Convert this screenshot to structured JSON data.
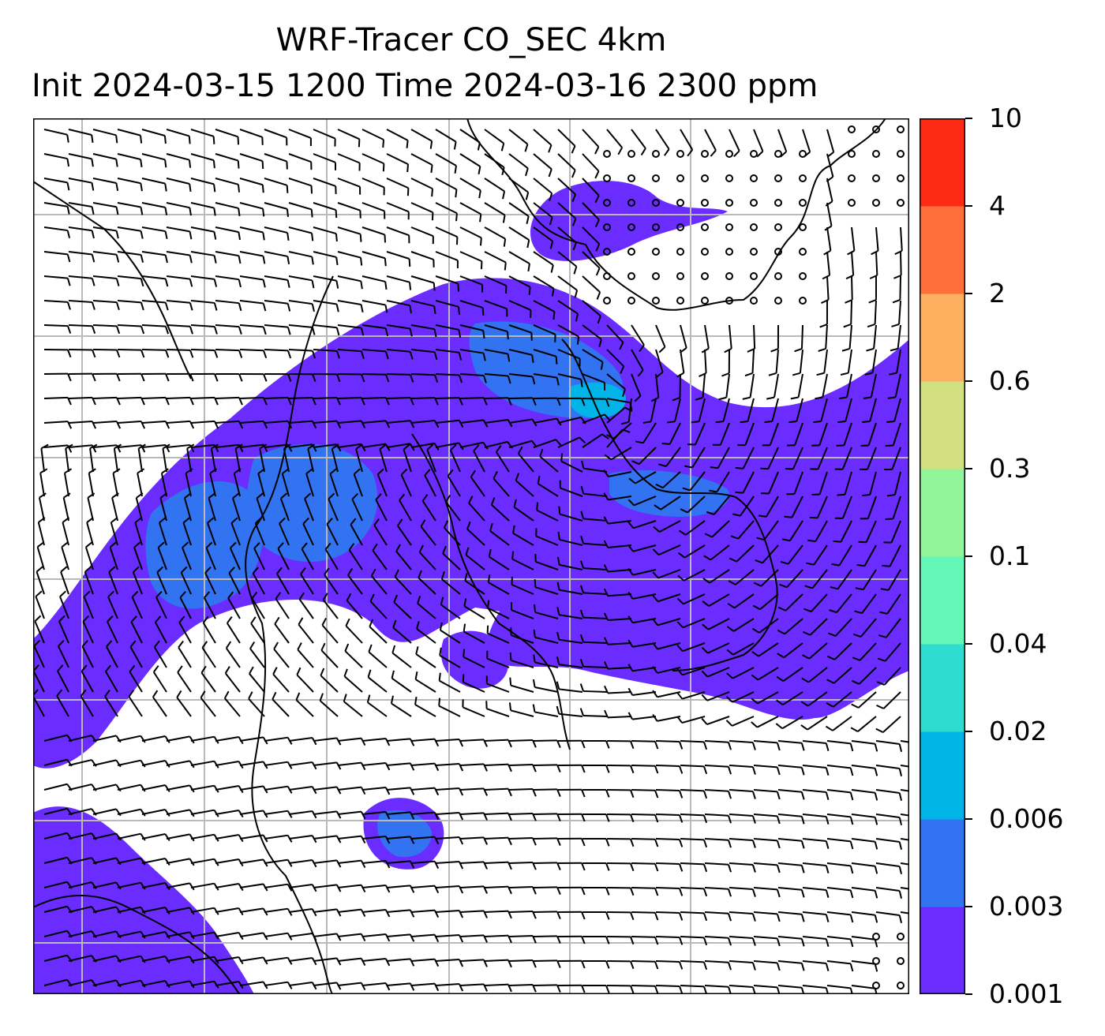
{
  "title": {
    "line1": "WRF-Tracer CO_SEC 4km",
    "line2": "Init 2024-03-15 1200 Time 2024-03-16 2300 ppm"
  },
  "colorbar": {
    "levels": [
      "0.001",
      "0.003",
      "0.006",
      "0.02",
      "0.04",
      "0.1",
      "0.3",
      "0.6",
      "2",
      "4",
      "10"
    ],
    "colors": [
      "#6a2cff",
      "#3173f0",
      "#00b4e8",
      "#2edcd0",
      "#63f7b8",
      "#92f59a",
      "#d2e080",
      "#fdb05f",
      "#ff6f3a",
      "#ff2a13"
    ]
  },
  "map": {
    "plume_colors": {
      "low": "#6a2cff",
      "mid": "#3173f0",
      "high": "#00b4e8"
    },
    "grid_color": "#b9b9b9",
    "layers": [
      "co-tracer-fill",
      "wind-barbs",
      "coastlines",
      "gridlines"
    ]
  }
}
